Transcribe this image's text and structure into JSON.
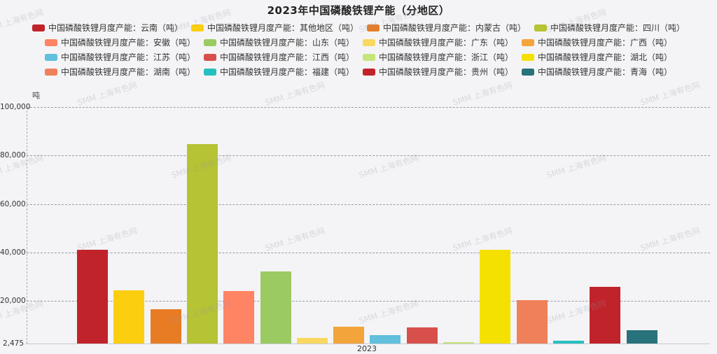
{
  "watermark_text": "SMM 上海有色网",
  "chart_data": {
    "type": "bar",
    "title": "2023年中国磷酸铁锂产能（分地区）",
    "unit": "吨",
    "xlabel": "",
    "ylabel": "吨",
    "x_categories": [
      "2023"
    ],
    "ylim": [
      2475,
      100000
    ],
    "grid": "dashed-horizontal",
    "legend_position": "top",
    "legend_rows": 4,
    "yticks": [
      {
        "label": "100,000",
        "value": 100000
      },
      {
        "label": "80,000",
        "value": 80000
      },
      {
        "label": "60,000",
        "value": 60000
      },
      {
        "label": "40,000",
        "value": 40000
      },
      {
        "label": "20,000",
        "value": 20000
      },
      {
        "label": "2,475",
        "value": 2475
      }
    ],
    "series": [
      {
        "name": "中国磷酸铁锂月度产能：云南（吨）",
        "region": "云南",
        "value": 41000,
        "color": "#c1232b"
      },
      {
        "name": "中国磷酸铁锂月度产能：其他地区（吨）",
        "region": "其他地区",
        "value": 24400,
        "color": "#fcce10"
      },
      {
        "name": "中国磷酸铁锂月度产能：内蒙古（吨）",
        "region": "内蒙古",
        "value": 16500,
        "color": "#e87c25"
      },
      {
        "name": "中国磷酸铁锂月度产能：四川（吨）",
        "region": "四川",
        "value": 84700,
        "color": "#b5c334"
      },
      {
        "name": "中国磷酸铁锂月度产能：安徽（吨）",
        "region": "安徽",
        "value": 24100,
        "color": "#fe8463"
      },
      {
        "name": "中国磷酸铁锂月度产能：山东（吨）",
        "region": "山东",
        "value": 32300,
        "color": "#9bca63"
      },
      {
        "name": "中国磷酸铁锂月度产能：广东（吨）",
        "region": "广东",
        "value": 4700,
        "color": "#fad860"
      },
      {
        "name": "中国磷酸铁锂月度产能：广西（吨）",
        "region": "广西",
        "value": 9500,
        "color": "#f3a43a"
      },
      {
        "name": "中国磷酸铁锂月度产能：江苏（吨）",
        "region": "江苏",
        "value": 5900,
        "color": "#60c0dd"
      },
      {
        "name": "中国磷酸铁锂月度产能：江西（吨）",
        "region": "江西",
        "value": 9200,
        "color": "#d7504b"
      },
      {
        "name": "中国磷酸铁锂月度产能：浙江（吨）",
        "region": "浙江",
        "value": 3000,
        "color": "#c6e579"
      },
      {
        "name": "中国磷酸铁锂月度产能：湖北（吨）",
        "region": "湖北",
        "value": 41200,
        "color": "#f4e001"
      },
      {
        "name": "中国磷酸铁锂月度产能：湖南（吨）",
        "region": "湖南",
        "value": 20500,
        "color": "#f0805a"
      },
      {
        "name": "中国磷酸铁锂月度产能：福建（吨）",
        "region": "福建",
        "value": 3700,
        "color": "#26c0c0"
      },
      {
        "name": "中国磷酸铁锂月度产能：贵州（吨）",
        "region": "贵州",
        "value": 25800,
        "color": "#c1232b"
      },
      {
        "name": "中国磷酸铁锂月度产能：青海（吨）",
        "region": "青海",
        "value": 8000,
        "color": "#27727b"
      }
    ]
  }
}
